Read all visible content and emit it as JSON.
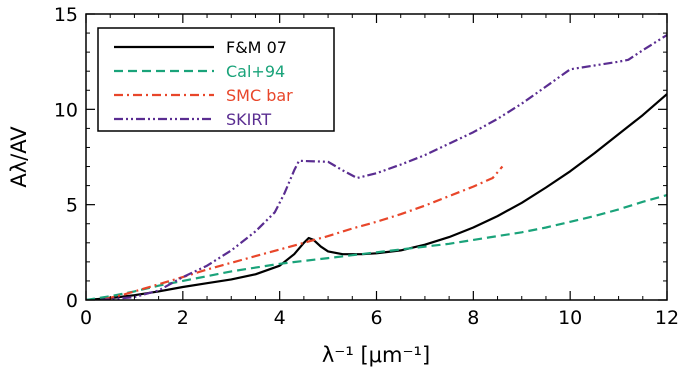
{
  "chart_data": {
    "type": "line",
    "xlabel": "λ⁻¹ [μm⁻¹]",
    "ylabel": "Aλ/AV",
    "xlim": [
      0,
      12
    ],
    "ylim": [
      0,
      15
    ],
    "xticks": [
      0,
      2,
      4,
      6,
      8,
      10,
      12
    ],
    "yticks": [
      0,
      5,
      10,
      15
    ],
    "xtick_labels": [
      "0",
      "2",
      "4",
      "6",
      "8",
      "10",
      "12"
    ],
    "ytick_labels": [
      "0",
      "5",
      "10",
      "15"
    ],
    "grid": false,
    "legend_position": "top-left",
    "series": [
      {
        "name": "F&M 07",
        "color": "#000000",
        "dash": "solid",
        "points": [
          [
            0,
            0
          ],
          [
            0.5,
            0.1
          ],
          [
            1,
            0.25
          ],
          [
            1.5,
            0.45
          ],
          [
            2,
            0.68
          ],
          [
            2.5,
            0.88
          ],
          [
            3,
            1.08
          ],
          [
            3.5,
            1.35
          ],
          [
            4,
            1.8
          ],
          [
            4.3,
            2.4
          ],
          [
            4.5,
            3.0
          ],
          [
            4.6,
            3.25
          ],
          [
            4.7,
            3.15
          ],
          [
            4.85,
            2.8
          ],
          [
            5,
            2.55
          ],
          [
            5.3,
            2.4
          ],
          [
            5.7,
            2.4
          ],
          [
            6,
            2.45
          ],
          [
            6.5,
            2.6
          ],
          [
            7,
            2.9
          ],
          [
            7.5,
            3.3
          ],
          [
            8,
            3.8
          ],
          [
            8.5,
            4.4
          ],
          [
            9,
            5.1
          ],
          [
            9.5,
            5.9
          ],
          [
            10,
            6.75
          ],
          [
            10.5,
            7.7
          ],
          [
            11,
            8.7
          ],
          [
            11.5,
            9.7
          ],
          [
            12,
            10.8
          ]
        ]
      },
      {
        "name": "Cal+94",
        "color": "#1aa37a",
        "dash": "dashed",
        "points": [
          [
            0,
            0
          ],
          [
            0.5,
            0.2
          ],
          [
            1,
            0.45
          ],
          [
            1.5,
            0.75
          ],
          [
            2,
            1.0
          ],
          [
            2.5,
            1.25
          ],
          [
            3,
            1.5
          ],
          [
            3.5,
            1.7
          ],
          [
            4,
            1.9
          ],
          [
            4.5,
            2.05
          ],
          [
            5,
            2.2
          ],
          [
            5.5,
            2.35
          ],
          [
            6,
            2.5
          ],
          [
            6.5,
            2.65
          ],
          [
            7,
            2.8
          ],
          [
            7.5,
            2.95
          ],
          [
            8,
            3.15
          ],
          [
            8.5,
            3.35
          ],
          [
            9,
            3.55
          ],
          [
            9.5,
            3.8
          ],
          [
            10,
            4.1
          ],
          [
            10.5,
            4.4
          ],
          [
            11,
            4.75
          ],
          [
            11.5,
            5.15
          ],
          [
            12,
            5.5
          ]
        ]
      },
      {
        "name": "SMC bar",
        "color": "#e8462a",
        "dash": "dash-dot",
        "points": [
          [
            0.4,
            0.05
          ],
          [
            0.8,
            0.3
          ],
          [
            1.2,
            0.6
          ],
          [
            1.6,
            0.9
          ],
          [
            2,
            1.2
          ],
          [
            2.5,
            1.6
          ],
          [
            3,
            1.95
          ],
          [
            3.5,
            2.3
          ],
          [
            4,
            2.65
          ],
          [
            4.5,
            3.0
          ],
          [
            5,
            3.35
          ],
          [
            5.5,
            3.75
          ],
          [
            6,
            4.1
          ],
          [
            6.5,
            4.5
          ],
          [
            7,
            4.95
          ],
          [
            7.5,
            5.45
          ],
          [
            8,
            5.95
          ],
          [
            8.4,
            6.4
          ],
          [
            8.6,
            7.0
          ]
        ]
      },
      {
        "name": "SKIRT",
        "color": "#5a2d91",
        "dash": "dash-dot-dot",
        "points": [
          [
            0.3,
            0
          ],
          [
            1,
            0.15
          ],
          [
            1.5,
            0.5
          ],
          [
            2,
            1.2
          ],
          [
            2.5,
            1.8
          ],
          [
            3,
            2.6
          ],
          [
            3.5,
            3.6
          ],
          [
            3.9,
            4.6
          ],
          [
            4.1,
            5.6
          ],
          [
            4.3,
            6.8
          ],
          [
            4.4,
            7.3
          ],
          [
            5,
            7.25
          ],
          [
            5.3,
            6.8
          ],
          [
            5.6,
            6.4
          ],
          [
            6,
            6.65
          ],
          [
            6.5,
            7.1
          ],
          [
            7,
            7.6
          ],
          [
            7.5,
            8.2
          ],
          [
            8,
            8.8
          ],
          [
            8.5,
            9.5
          ],
          [
            9,
            10.3
          ],
          [
            9.5,
            11.2
          ],
          [
            10,
            12.1
          ],
          [
            10.5,
            12.3
          ],
          [
            11,
            12.5
          ],
          [
            11.2,
            12.6
          ],
          [
            11.5,
            13.1
          ],
          [
            12,
            13.9
          ]
        ]
      }
    ]
  }
}
